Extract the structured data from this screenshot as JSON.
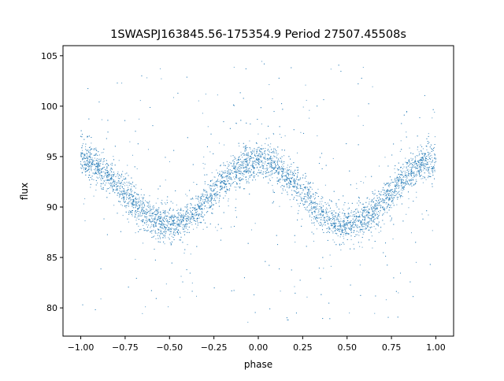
{
  "chart_data": {
    "type": "scatter",
    "title": "1SWASPJ163845.56-175354.9 Period 27507.45508s",
    "xlabel": "phase",
    "ylabel": "flux",
    "xlim": [
      -1.1,
      1.1
    ],
    "ylim": [
      77.2,
      106.0
    ],
    "xticks": [
      -1.0,
      -0.75,
      -0.5,
      -0.25,
      0.0,
      0.25,
      0.5,
      0.75,
      1.0
    ],
    "xtick_labels": [
      "−1.00",
      "−0.75",
      "−0.50",
      "−0.25",
      "0.00",
      "0.25",
      "0.50",
      "0.75",
      "1.00"
    ],
    "yticks": [
      80,
      85,
      90,
      95,
      100,
      105
    ],
    "ytick_labels": [
      "80",
      "85",
      "90",
      "95",
      "100",
      "105"
    ],
    "grid": false,
    "legend": "none",
    "marker_color": "#1f77b4",
    "series": [
      {
        "model": {
          "description": "folded light curve: flux vs phase, sinusoidal with period 1 in phase",
          "phase_range": [
            -1.0,
            1.0
          ],
          "mean_flux": 91.4,
          "amplitude": 3.2,
          "maximum_phase": 0.0,
          "minimum_phase": [
            -0.55,
            0.45
          ],
          "scatter_sigma": 0.85,
          "outlier_range": [
            78.5,
            104.5
          ]
        },
        "points": [
          {
            "x": -1.0,
            "y": 94.5
          },
          {
            "x": -0.9,
            "y": 93.6
          },
          {
            "x": -0.8,
            "y": 92.0
          },
          {
            "x": -0.7,
            "y": 90.2
          },
          {
            "x": -0.6,
            "y": 88.9
          },
          {
            "x": -0.55,
            "y": 88.6
          },
          {
            "x": -0.5,
            "y": 88.8
          },
          {
            "x": -0.4,
            "y": 89.6
          },
          {
            "x": -0.3,
            "y": 91.2
          },
          {
            "x": -0.2,
            "y": 93.0
          },
          {
            "x": -0.1,
            "y": 94.2
          },
          {
            "x": 0.0,
            "y": 94.6
          },
          {
            "x": 0.1,
            "y": 94.1
          },
          {
            "x": 0.2,
            "y": 92.5
          },
          {
            "x": 0.3,
            "y": 90.6
          },
          {
            "x": 0.4,
            "y": 89.0
          },
          {
            "x": 0.45,
            "y": 88.6
          },
          {
            "x": 0.5,
            "y": 88.9
          },
          {
            "x": 0.6,
            "y": 90.0
          },
          {
            "x": 0.7,
            "y": 91.7
          },
          {
            "x": 0.8,
            "y": 93.2
          },
          {
            "x": 0.9,
            "y": 94.2
          },
          {
            "x": 1.0,
            "y": 94.5
          }
        ]
      }
    ]
  }
}
